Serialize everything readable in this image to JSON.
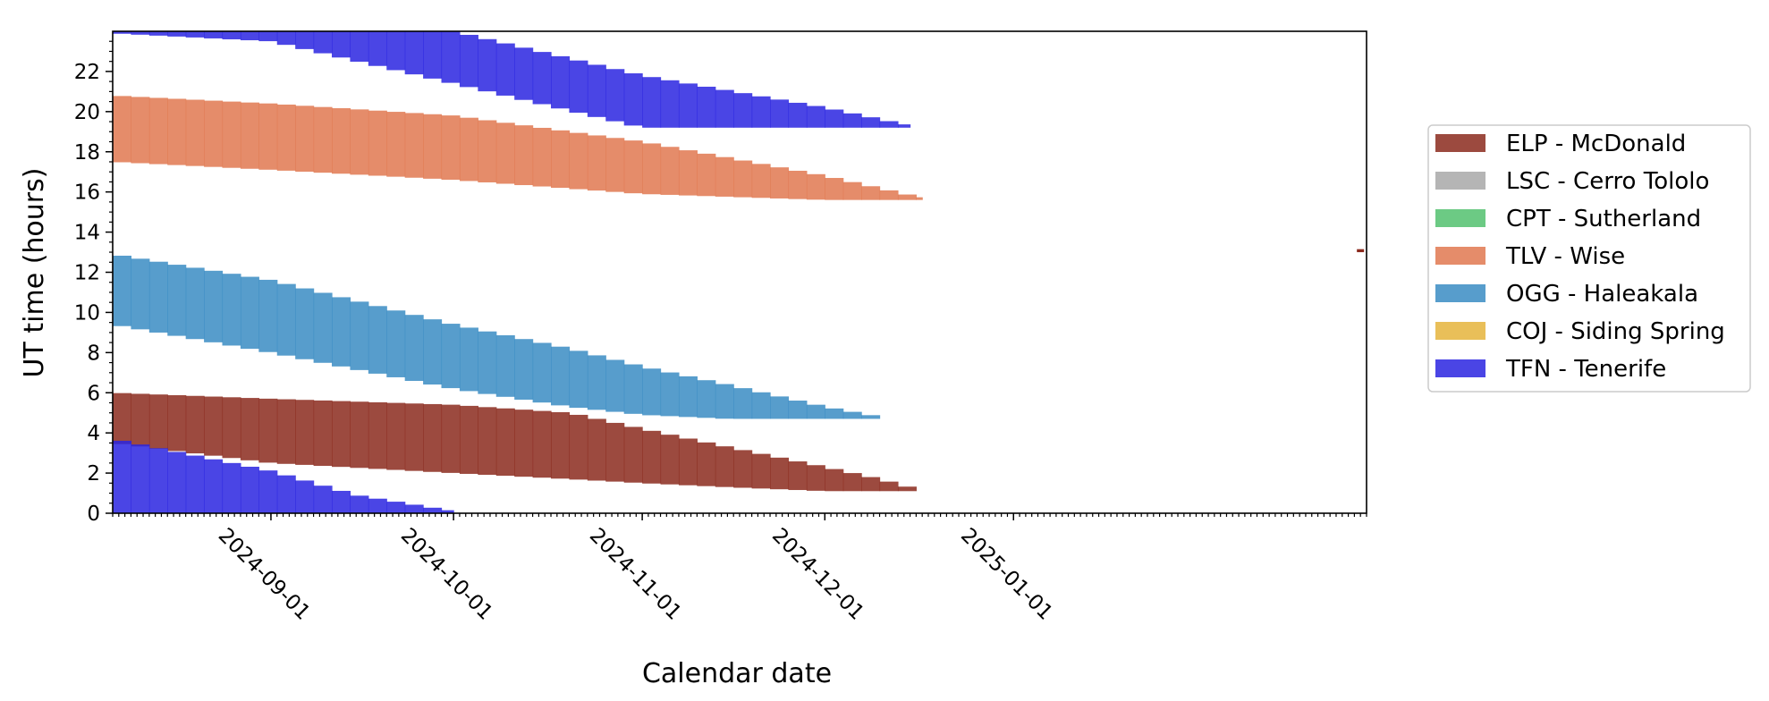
{
  "chart_data": {
    "type": "area",
    "xlabel": "Calendar date",
    "ylabel": "UT time (hours)",
    "xlim": [
      "2024-08-06",
      "2025-02-28"
    ],
    "ylim": [
      0,
      24
    ],
    "x_ticks": [
      "2024-09-01",
      "2024-10-01",
      "2024-11-01",
      "2024-12-01",
      "2025-01-01"
    ],
    "y_ticks": [
      0,
      2,
      4,
      6,
      8,
      10,
      12,
      14,
      16,
      18,
      20,
      22
    ],
    "legend": {
      "placement": "outside-right"
    },
    "series": [
      {
        "name": "ELP - McDonald",
        "color": "#8b2a1d",
        "dates": [
          "2024-08-06",
          "2024-09-01",
          "2024-10-01",
          "2024-10-20",
          "2024-11-01",
          "2024-11-15",
          "2024-12-01",
          "2024-12-10",
          "2024-12-16"
        ],
        "start": [
          3.5,
          2.5,
          2.0,
          1.7,
          1.5,
          1.3,
          1.1,
          1.1,
          1.1
        ],
        "end": [
          6.0,
          5.7,
          5.4,
          5.0,
          4.2,
          3.3,
          2.3,
          1.7,
          1.2
        ]
      },
      {
        "name": "LSC - Cerro Tololo",
        "color": "#a8a8a8",
        "dates": [],
        "start": [],
        "end": []
      },
      {
        "name": "CPT - Sutherland",
        "color": "#52c16e",
        "dates": [],
        "start": [],
        "end": []
      },
      {
        "name": "TLV - Wise",
        "color": "#e07850",
        "dates": [
          "2024-08-06",
          "2024-09-01",
          "2024-10-01",
          "2024-11-01",
          "2024-12-01",
          "2024-12-17"
        ],
        "start": [
          17.5,
          17.1,
          16.6,
          15.9,
          15.6,
          15.6
        ],
        "end": [
          20.8,
          20.4,
          19.8,
          18.5,
          16.8,
          15.7
        ]
      },
      {
        "name": "OGG - Haleakala",
        "color": "#3a8cc3",
        "dates": [
          "2024-08-06",
          "2024-09-01",
          "2024-10-01",
          "2024-10-20",
          "2024-11-01",
          "2024-11-15",
          "2024-12-01",
          "2024-12-10"
        ],
        "start": [
          9.4,
          8.0,
          6.2,
          5.3,
          4.9,
          4.7,
          4.7,
          4.7
        ],
        "end": [
          12.9,
          11.6,
          9.4,
          8.2,
          7.3,
          6.4,
          5.3,
          4.8
        ]
      },
      {
        "name": "COJ - Siding Spring",
        "color": "#e5b43c",
        "dates": [],
        "start": [],
        "end": []
      },
      {
        "name": "TFN - Tenerife",
        "color": "#2a25e0",
        "dates": [
          "2024-08-06",
          "2024-09-01",
          "2024-10-01",
          "2024-11-01",
          "2024-12-01",
          "2024-12-15"
        ],
        "start": [
          23.9,
          23.5,
          21.4,
          19.2,
          19.2,
          19.2
        ],
        "end": [
          24.0,
          24.0,
          24.0,
          21.8,
          20.2,
          19.3
        ]
      },
      {
        "name": "TFN - Tenerife",
        "color": "#2a25e0",
        "legend": false,
        "dates": [
          "2024-08-06",
          "2024-09-01",
          "2024-09-15",
          "2024-10-01"
        ],
        "start": [
          0.0,
          0.0,
          0.0,
          0.0
        ],
        "end": [
          3.7,
          2.1,
          0.9,
          0.1
        ]
      }
    ],
    "annotations": [
      {
        "series": "ELP - McDonald",
        "date": "2025-02-27",
        "start": 13.0,
        "end": 13.15
      }
    ]
  }
}
